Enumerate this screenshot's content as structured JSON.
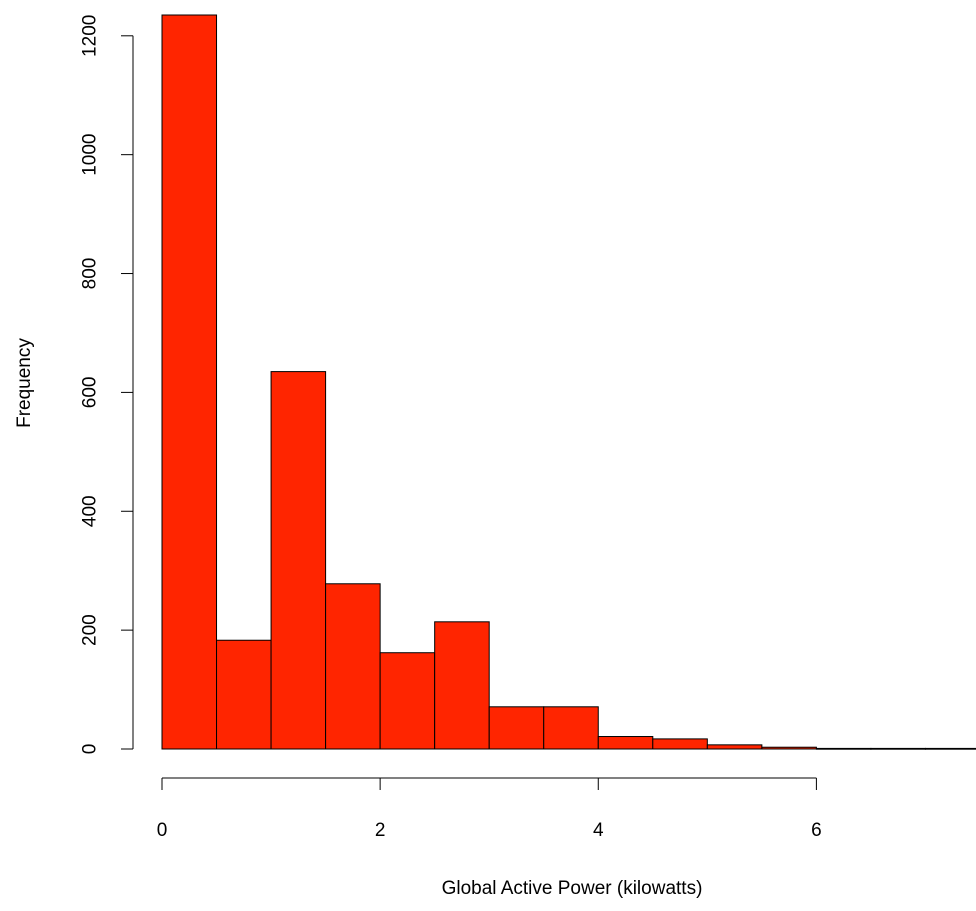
{
  "chart_data": {
    "type": "bar",
    "histogram": true,
    "title": "",
    "xlabel": "Global Active Power (kilowatts)",
    "ylabel": "Frequency",
    "bar_color": "#ff2500",
    "bar_edge_color": "#000000",
    "bin_edges": [
      0,
      0.5,
      1,
      1.5,
      2,
      2.5,
      3,
      3.5,
      4,
      4.5,
      5,
      5.5,
      6,
      6.5,
      7,
      7.5
    ],
    "values": [
      1235,
      183,
      635,
      278,
      162,
      214,
      71,
      71,
      21,
      17,
      7,
      3,
      1,
      1,
      1
    ],
    "xlim": [
      0,
      7.5
    ],
    "ylim": [
      0,
      1235
    ],
    "x_ticks": [
      0,
      2,
      4,
      6
    ],
    "x_tick_labels": [
      "0",
      "2",
      "4",
      "6"
    ],
    "y_ticks": [
      0,
      200,
      400,
      600,
      800,
      1000,
      1200
    ],
    "y_tick_labels": [
      "0",
      "200",
      "400",
      "600",
      "800",
      "1000",
      "1200"
    ],
    "grid": false,
    "legend": false
  }
}
